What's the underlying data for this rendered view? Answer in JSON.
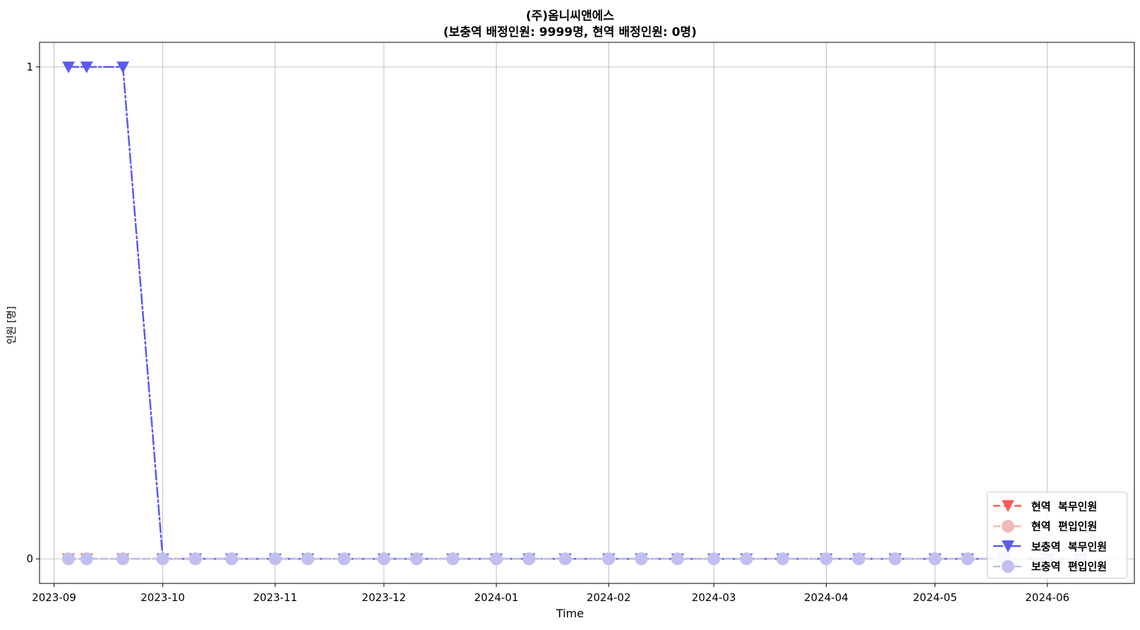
{
  "chart_data": {
    "type": "line",
    "title": "(주)옴니씨앤에스",
    "subtitle": "(보충역  배정인원:  9999명,  현역  배정인원:  0명)",
    "xlabel": "Time",
    "ylabel": "인원 [명]",
    "x": [
      "2023-09-05",
      "2023-09-10",
      "2023-09-20",
      "2023-10-01",
      "2023-10-10",
      "2023-10-20",
      "2023-11-01",
      "2023-11-10",
      "2023-11-20",
      "2023-12-01",
      "2023-12-10",
      "2023-12-20",
      "2024-01-01",
      "2024-01-10",
      "2024-01-20",
      "2024-02-01",
      "2024-02-10",
      "2024-02-20",
      "2024-03-01",
      "2024-03-10",
      "2024-03-20",
      "2024-04-01",
      "2024-04-10",
      "2024-04-20",
      "2024-05-01",
      "2024-05-10",
      "2024-05-20",
      "2024-06-01",
      "2024-06-10"
    ],
    "x_tick_labels": [
      "2023-09",
      "2023-10",
      "2023-11",
      "2023-12",
      "2024-01",
      "2024-02",
      "2024-03",
      "2024-04",
      "2024-05",
      "2024-06"
    ],
    "x_range": [
      "2023-08-28",
      "2024-06-25"
    ],
    "y_ticks": [
      0,
      1
    ],
    "ylim": [
      -0.05,
      1.05
    ],
    "grid": true,
    "legend_position": "bottom-right",
    "series": [
      {
        "name": "현역  복무인원",
        "color": "#ff5c5c",
        "marker": "triangle-down",
        "linestyle": "dashed",
        "values": [
          0,
          0,
          0,
          0,
          0,
          0,
          0,
          0,
          0,
          0,
          0,
          0,
          0,
          0,
          0,
          0,
          0,
          0,
          0,
          0,
          0,
          0,
          0,
          0,
          0,
          0,
          0,
          0,
          0
        ]
      },
      {
        "name": "현역  편입인원",
        "color": "#f0baba",
        "marker": "circle",
        "linestyle": "dashed",
        "values": [
          0,
          0,
          0,
          0,
          0,
          0,
          0,
          0,
          0,
          0,
          0,
          0,
          0,
          0,
          0,
          0,
          0,
          0,
          0,
          0,
          0,
          0,
          0,
          0,
          0,
          0,
          0,
          0,
          0
        ]
      },
      {
        "name": "보충역  복무인원",
        "color": "#5a5af5",
        "marker": "triangle-down",
        "linestyle": "dashdot",
        "values": [
          1,
          1,
          1,
          0,
          0,
          0,
          0,
          0,
          0,
          0,
          0,
          0,
          0,
          0,
          0,
          0,
          0,
          0,
          0,
          0,
          0,
          0,
          0,
          0,
          0,
          0,
          0,
          0,
          0
        ]
      },
      {
        "name": "보충역  편입인원",
        "color": "#c0c0f0",
        "marker": "circle",
        "linestyle": "dashed",
        "values": [
          0,
          0,
          0,
          0,
          0,
          0,
          0,
          0,
          0,
          0,
          0,
          0,
          0,
          0,
          0,
          0,
          0,
          0,
          0,
          0,
          0,
          0,
          0,
          0,
          0,
          0,
          0,
          0,
          0
        ]
      }
    ]
  }
}
